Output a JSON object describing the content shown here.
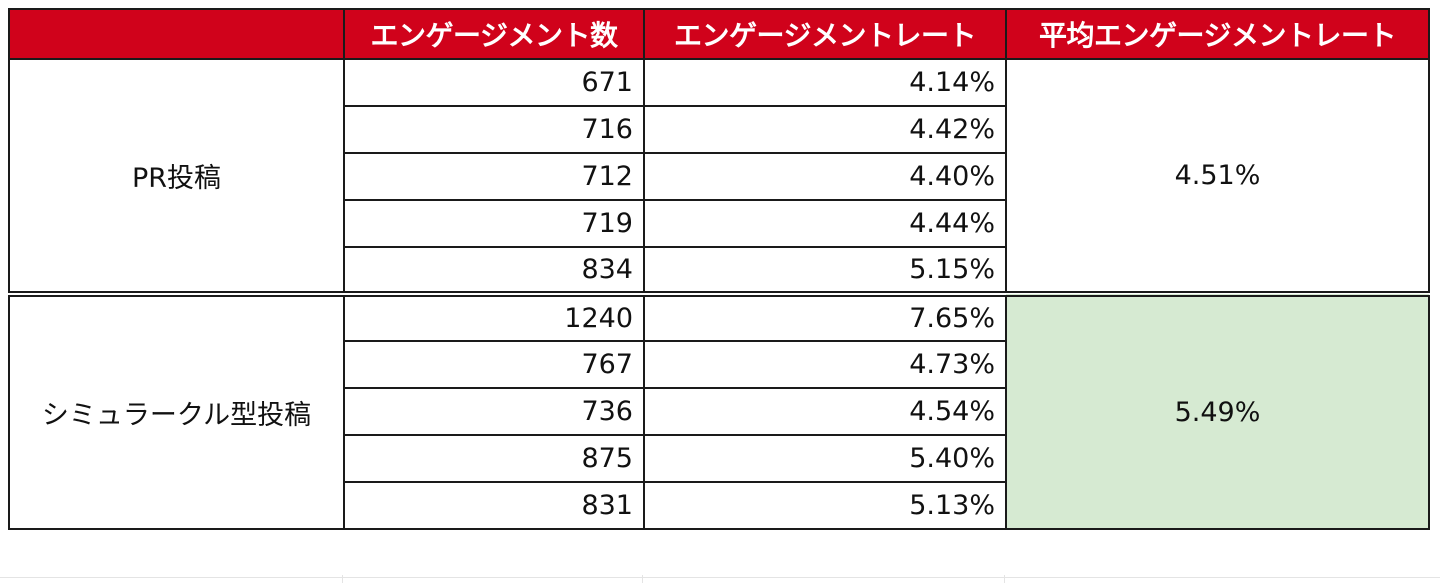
{
  "table": {
    "headers": [
      "",
      "エンゲージメント数",
      "エンゲージメントレート",
      "平均エンゲージメントレート"
    ],
    "groups": [
      {
        "label": "PR投稿",
        "average": "4.51%",
        "highlight": false,
        "rows": [
          {
            "count": "671",
            "rate": "4.14%"
          },
          {
            "count": "716",
            "rate": "4.42%"
          },
          {
            "count": "712",
            "rate": "4.40%"
          },
          {
            "count": "719",
            "rate": "4.44%"
          },
          {
            "count": "834",
            "rate": "5.15%"
          }
        ]
      },
      {
        "label": "シミュラークル型投稿",
        "average": "5.49%",
        "highlight": true,
        "rows": [
          {
            "count": "1240",
            "rate": "7.65%"
          },
          {
            "count": "767",
            "rate": "4.73%"
          },
          {
            "count": "736",
            "rate": "4.54%"
          },
          {
            "count": "875",
            "rate": "5.40%"
          },
          {
            "count": "831",
            "rate": "5.13%"
          }
        ]
      }
    ]
  },
  "colors": {
    "header_bg": "#d0021b",
    "header_text": "#ffffff",
    "highlight_bg": "#d6ead2",
    "border": "#1a1a1a"
  }
}
